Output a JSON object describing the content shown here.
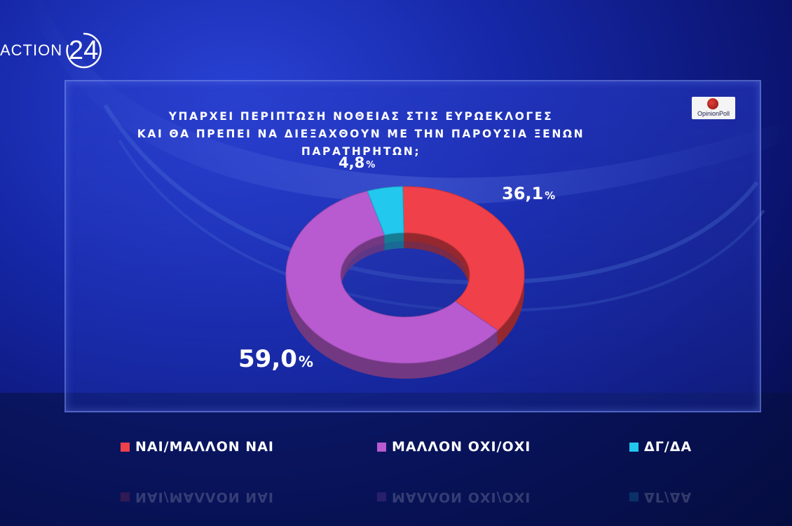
{
  "logo": {
    "brand": "ACTION",
    "number": "24"
  },
  "badge": {
    "label": "OpinionPoll"
  },
  "chart_data": {
    "type": "pie",
    "title_line1": "ΥΠΑΡΧΕΙ ΠΕΡΙΠΤΩΣΗ ΝΟΘΕΙΑΣ ΣΤΙΣ ΕΥΡΩΕΚΛΟΓΕΣ",
    "title_line2": "ΚΑΙ ΘΑ ΠΡΕΠΕΙ ΝΑ ΔΙΕΞΑΧΘΟΥΝ ΜΕ ΤΗΝ ΠΑΡΟΥΣΙΑ ΞΕΝΩΝ ΠΑΡΑΤΗΡΗΤΩΝ;",
    "slices": [
      {
        "name": "ΝΑΙ/ΜΑΛΛΟΝ ΝΑΙ",
        "value": 36.1,
        "label": "36,1",
        "color": "#f0404a"
      },
      {
        "name": "ΜΑΛΛΟΝ ΟΧΙ/ΟΧΙ",
        "value": 59.0,
        "label": "59,0",
        "color": "#b85ad0"
      },
      {
        "name": "ΔΓ/ΔΑ",
        "value": 4.8,
        "label": "4,8",
        "color": "#22c8ee"
      }
    ],
    "unit": "%"
  }
}
